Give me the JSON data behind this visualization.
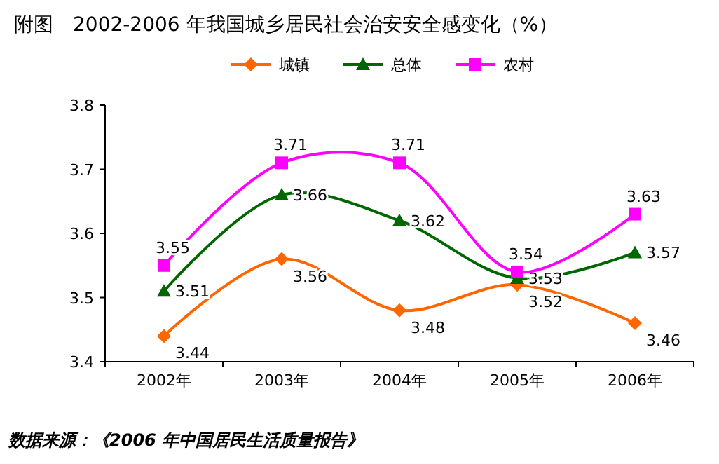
{
  "chart_data": {
    "type": "line",
    "title": "附图　2002-2006 年我国城乡居民社会治安安全感变化（%）",
    "categories": [
      "2002年",
      "2003年",
      "2004年",
      "2005年",
      "2006年"
    ],
    "series": [
      {
        "name": "城镇",
        "color": "#ff6600",
        "marker": "diamond",
        "values": [
          3.44,
          3.56,
          3.48,
          3.52,
          3.46
        ]
      },
      {
        "name": "总体",
        "color": "#006600",
        "marker": "triangle",
        "values": [
          3.51,
          3.66,
          3.62,
          3.53,
          3.57
        ]
      },
      {
        "name": "农村",
        "color": "#ff00ff",
        "marker": "square",
        "values": [
          3.55,
          3.71,
          3.71,
          3.54,
          3.63
        ]
      }
    ],
    "ylim": [
      3.4,
      3.8
    ],
    "yticks": [
      3.4,
      3.5,
      3.6,
      3.7,
      3.8
    ],
    "grid": false,
    "legend": "top",
    "data_labels": true,
    "annotations": [
      "数据来源：《2006 年中国居民生活质量报告》"
    ]
  }
}
